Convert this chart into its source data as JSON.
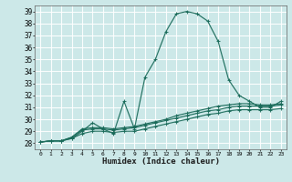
{
  "title": "",
  "xlabel": "Humidex (Indice chaleur)",
  "ylabel": "",
  "bg_color": "#cce8e8",
  "grid_color": "#ffffff",
  "line_color": "#1a6b5a",
  "xlim": [
    -0.5,
    23.5
  ],
  "ylim": [
    27.5,
    39.5
  ],
  "yticks": [
    28,
    29,
    30,
    31,
    32,
    33,
    34,
    35,
    36,
    37,
    38,
    39
  ],
  "xtick_labels": [
    "0",
    "1",
    "2",
    "3",
    "4",
    "5",
    "6",
    "7",
    "8",
    "9",
    "10",
    "11",
    "12",
    "13",
    "14",
    "15",
    "16",
    "17",
    "18",
    "19",
    "20",
    "21",
    "22",
    "23"
  ],
  "xticks": [
    0,
    1,
    2,
    3,
    4,
    5,
    6,
    7,
    8,
    9,
    10,
    11,
    12,
    13,
    14,
    15,
    16,
    17,
    18,
    19,
    20,
    21,
    22,
    23
  ],
  "series": [
    {
      "x": [
        0,
        1,
        2,
        3,
        4,
        5,
        6,
        7,
        8,
        9,
        10,
        11,
        12,
        13,
        14,
        15,
        16,
        17,
        18,
        19,
        20,
        21,
        22,
        23
      ],
      "y": [
        28.1,
        28.2,
        28.2,
        28.4,
        29.0,
        29.7,
        29.2,
        28.8,
        31.5,
        29.2,
        33.5,
        35.0,
        37.3,
        38.8,
        39.0,
        38.8,
        38.2,
        36.5,
        33.3,
        32.0,
        31.5,
        31.0,
        31.0,
        31.5
      ]
    },
    {
      "x": [
        0,
        1,
        2,
        3,
        4,
        5,
        6,
        7,
        8,
        9,
        10,
        11,
        12,
        13,
        14,
        15,
        16,
        17,
        18,
        19,
        20,
        21,
        22,
        23
      ],
      "y": [
        28.1,
        28.2,
        28.2,
        28.5,
        29.2,
        29.3,
        29.3,
        29.2,
        29.3,
        29.4,
        29.6,
        29.8,
        30.0,
        30.3,
        30.5,
        30.7,
        30.9,
        31.1,
        31.2,
        31.3,
        31.3,
        31.2,
        31.2,
        31.3
      ]
    },
    {
      "x": [
        0,
        1,
        2,
        3,
        4,
        5,
        6,
        7,
        8,
        9,
        10,
        11,
        12,
        13,
        14,
        15,
        16,
        17,
        18,
        19,
        20,
        21,
        22,
        23
      ],
      "y": [
        28.1,
        28.2,
        28.2,
        28.5,
        29.1,
        29.2,
        29.2,
        29.1,
        29.2,
        29.3,
        29.5,
        29.7,
        29.9,
        30.1,
        30.3,
        30.5,
        30.7,
        30.8,
        31.0,
        31.1,
        31.1,
        31.1,
        31.1,
        31.2
      ]
    },
    {
      "x": [
        0,
        1,
        2,
        3,
        4,
        5,
        6,
        7,
        8,
        9,
        10,
        11,
        12,
        13,
        14,
        15,
        16,
        17,
        18,
        19,
        20,
        21,
        22,
        23
      ],
      "y": [
        28.1,
        28.2,
        28.2,
        28.4,
        28.8,
        29.0,
        29.0,
        28.9,
        29.0,
        29.0,
        29.2,
        29.4,
        29.6,
        29.8,
        30.0,
        30.2,
        30.4,
        30.5,
        30.7,
        30.8,
        30.8,
        30.8,
        30.8,
        30.9
      ]
    }
  ]
}
